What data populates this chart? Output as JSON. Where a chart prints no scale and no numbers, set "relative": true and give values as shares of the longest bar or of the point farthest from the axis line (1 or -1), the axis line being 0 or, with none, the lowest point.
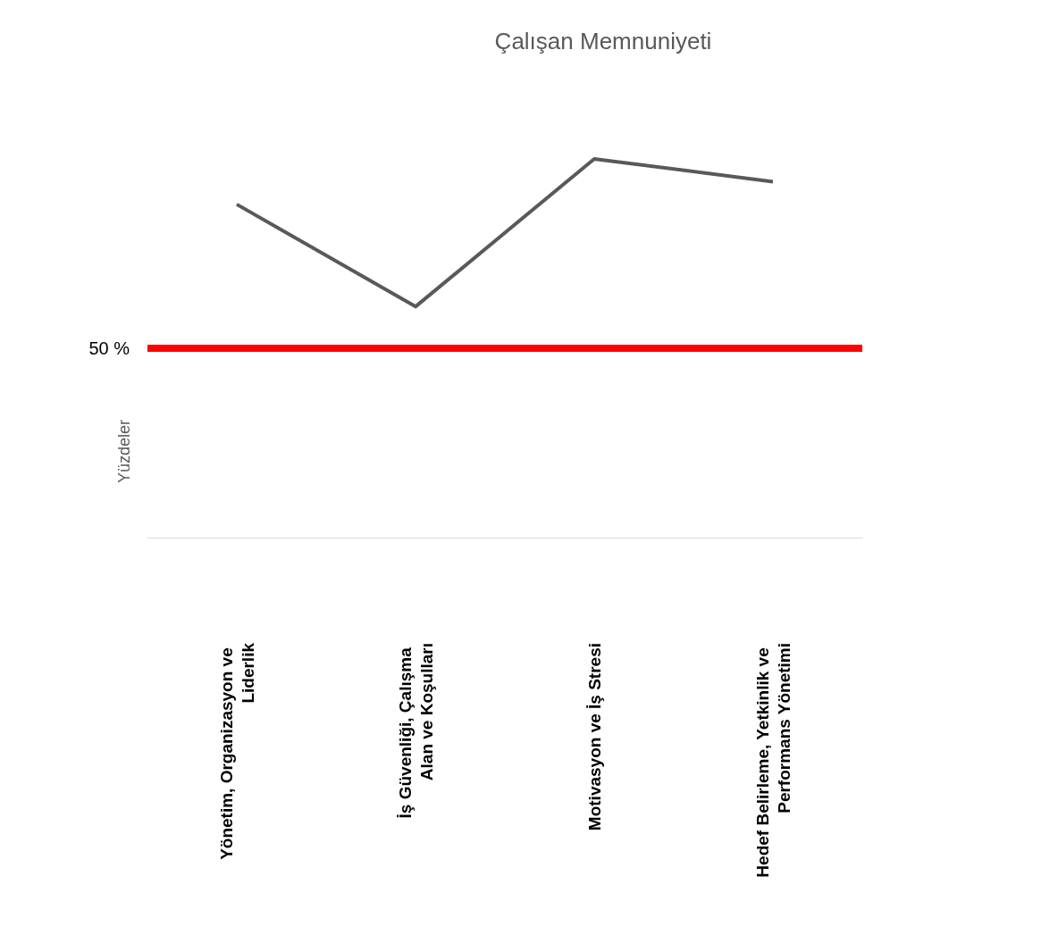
{
  "chart_data": {
    "type": "line",
    "title": "Çalışan Memnuniyeti",
    "ylabel": "Yüzdeler",
    "relative": true,
    "categories": [
      "Yönetim, Organizasyon ve Liderlik",
      "İş Güvenliği, Çalışma Alan ve Koşulları",
      "Motivasyon ve İş Stresi",
      "Hedef Belirleme, Yetkinlik ve Performans Yönetimi"
    ],
    "series": [
      {
        "color": "#595959",
        "values": [
          0.88,
          0.61,
          1,
          0.94
        ]
      }
    ],
    "ref_lines": [
      {
        "axis": "y",
        "value": 0.5,
        "label": "50 %",
        "color": "#ff0000"
      }
    ],
    "grid": false
  }
}
